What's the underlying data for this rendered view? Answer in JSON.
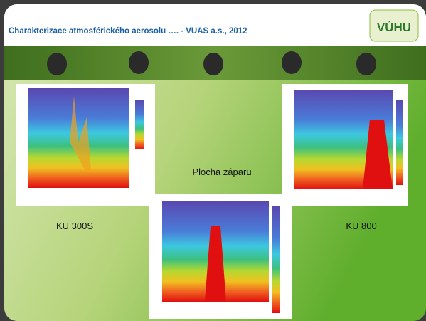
{
  "header": {
    "title": "Charakterizace atmosférického aerosolu …. -  VUAS a.s., 2012",
    "logo": "VÚHU"
  },
  "slide": {
    "labels": [
      "KU 300S",
      "Plocha záparu",
      "KU 800"
    ]
  }
}
